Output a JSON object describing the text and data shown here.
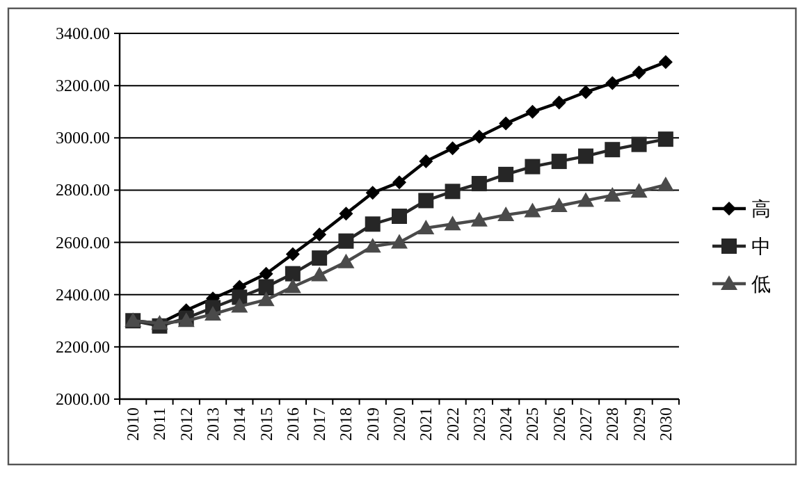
{
  "chart_data": {
    "type": "line",
    "categories": [
      "2010",
      "2011",
      "2012",
      "2013",
      "2014",
      "2015",
      "2016",
      "2017",
      "2018",
      "2019",
      "2020",
      "2021",
      "2022",
      "2023",
      "2024",
      "2025",
      "2026",
      "2027",
      "2028",
      "2029",
      "2030"
    ],
    "series": [
      {
        "name": "高",
        "color": "#000000",
        "marker": "diamond",
        "values": [
          2300,
          2290,
          2340,
          2385,
          2430,
          2480,
          2555,
          2630,
          2710,
          2790,
          2830,
          2910,
          2960,
          3005,
          3055,
          3100,
          3135,
          3175,
          3210,
          3250,
          3290
        ]
      },
      {
        "name": "中",
        "color": "#262626",
        "marker": "square",
        "values": [
          2300,
          2280,
          2310,
          2350,
          2390,
          2430,
          2480,
          2540,
          2605,
          2670,
          2700,
          2760,
          2795,
          2825,
          2860,
          2890,
          2910,
          2930,
          2955,
          2975,
          2995
        ]
      },
      {
        "name": "低",
        "color": "#4a4a4a",
        "marker": "triangle",
        "values": [
          2300,
          2290,
          2300,
          2325,
          2355,
          2380,
          2430,
          2475,
          2525,
          2585,
          2600,
          2655,
          2670,
          2685,
          2705,
          2720,
          2740,
          2760,
          2780,
          2795,
          2820
        ]
      }
    ],
    "ylim": [
      2000,
      3400
    ],
    "yticks": [
      {
        "value": 2000,
        "label": "2000.00"
      },
      {
        "value": 2200,
        "label": "2200.00"
      },
      {
        "value": 2400,
        "label": "2400.00"
      },
      {
        "value": 2600,
        "label": "2600.00"
      },
      {
        "value": 2800,
        "label": "2800.00"
      },
      {
        "value": 3000,
        "label": "3000.00"
      },
      {
        "value": 3200,
        "label": "3200.00"
      },
      {
        "value": 3400,
        "label": "3400.00"
      }
    ],
    "grid": "y",
    "legend": "right",
    "line_style": "solid"
  }
}
